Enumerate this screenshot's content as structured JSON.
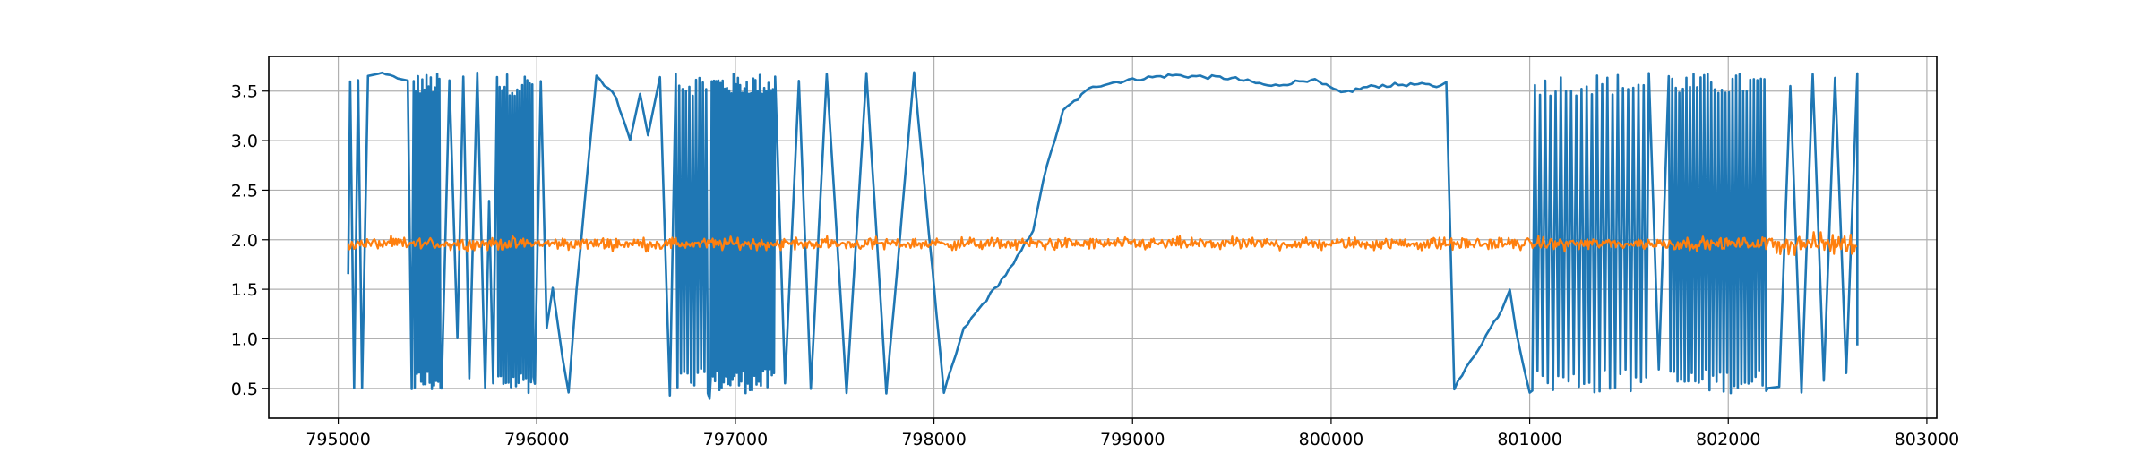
{
  "chart_data": {
    "type": "line",
    "title": "",
    "xlabel": "",
    "ylabel": "",
    "xlim": [
      794650,
      803050
    ],
    "ylim": [
      0.2,
      3.85
    ],
    "grid": true,
    "x_ticks": [
      795000,
      796000,
      797000,
      798000,
      799000,
      800000,
      801000,
      802000,
      803000
    ],
    "x_tick_labels": [
      "795000",
      "796000",
      "797000",
      "798000",
      "799000",
      "800000",
      "801000",
      "802000",
      "803000"
    ],
    "y_ticks": [
      0.5,
      1.0,
      1.5,
      2.0,
      2.5,
      3.0,
      3.5
    ],
    "y_tick_labels": [
      "0.5",
      "1.0",
      "1.5",
      "2.0",
      "2.5",
      "3.0",
      "3.5"
    ],
    "series": [
      {
        "color": "#1f77b4",
        "x_start": 795050,
        "x_end": 802650,
        "description_points": [
          [
            795050,
            1.65
          ],
          [
            795060,
            3.6
          ],
          [
            795080,
            0.5
          ],
          [
            795100,
            3.6
          ],
          [
            795120,
            0.5
          ],
          [
            795150,
            3.65
          ],
          [
            795200,
            3.68
          ],
          [
            795300,
            3.63
          ],
          [
            795350,
            3.6
          ],
          [
            795370,
            0.5
          ],
          [
            795380,
            3.6
          ],
          [
            795520,
            0.5
          ],
          [
            795560,
            3.6
          ],
          [
            795600,
            1.0
          ],
          [
            795630,
            3.65
          ],
          [
            795660,
            0.6
          ],
          [
            795700,
            3.68
          ],
          [
            795740,
            0.5
          ],
          [
            795760,
            2.4
          ],
          [
            795780,
            0.55
          ],
          [
            795800,
            3.65
          ],
          [
            795990,
            0.55
          ],
          [
            796020,
            3.6
          ],
          [
            796050,
            1.1
          ],
          [
            796080,
            1.52
          ],
          [
            796130,
            0.8
          ],
          [
            796160,
            0.45
          ],
          [
            796200,
            1.5
          ],
          [
            796300,
            3.65
          ],
          [
            796400,
            3.43
          ],
          [
            796470,
            3.0
          ],
          [
            796520,
            3.47
          ],
          [
            796560,
            3.05
          ],
          [
            796620,
            3.65
          ],
          [
            796670,
            0.42
          ],
          [
            796700,
            3.68
          ],
          [
            796870,
            0.4
          ],
          [
            797200,
            3.65
          ],
          [
            797250,
            0.55
          ],
          [
            797320,
            3.6
          ],
          [
            797380,
            0.5
          ],
          [
            797460,
            3.68
          ],
          [
            797560,
            0.45
          ],
          [
            797660,
            3.68
          ],
          [
            797760,
            0.45
          ],
          [
            797900,
            3.68
          ],
          [
            798050,
            0.45
          ],
          [
            798150,
            1.1
          ],
          [
            798400,
            1.75
          ],
          [
            798500,
            2.1
          ],
          [
            798550,
            2.6
          ],
          [
            798650,
            3.3
          ],
          [
            798800,
            3.55
          ],
          [
            799000,
            3.62
          ],
          [
            799200,
            3.66
          ],
          [
            799500,
            3.63
          ],
          [
            799700,
            3.55
          ],
          [
            799900,
            3.62
          ],
          [
            800050,
            3.48
          ],
          [
            800200,
            3.55
          ],
          [
            800400,
            3.57
          ],
          [
            800550,
            3.55
          ],
          [
            800580,
            3.6
          ],
          [
            800620,
            0.5
          ],
          [
            800860,
            1.3
          ],
          [
            800900,
            1.5
          ],
          [
            800930,
            1.1
          ],
          [
            801000,
            0.45
          ],
          [
            801600,
            3.68
          ],
          [
            801650,
            0.7
          ],
          [
            801700,
            3.65
          ],
          [
            802200,
            0.5
          ],
          [
            802650,
            3.68
          ],
          [
            802650,
            0.93
          ]
        ]
      },
      {
        "color": "#ff7f0e",
        "x_start": 795050,
        "x_end": 802650,
        "mean": 1.96,
        "spread": 0.06
      }
    ]
  }
}
